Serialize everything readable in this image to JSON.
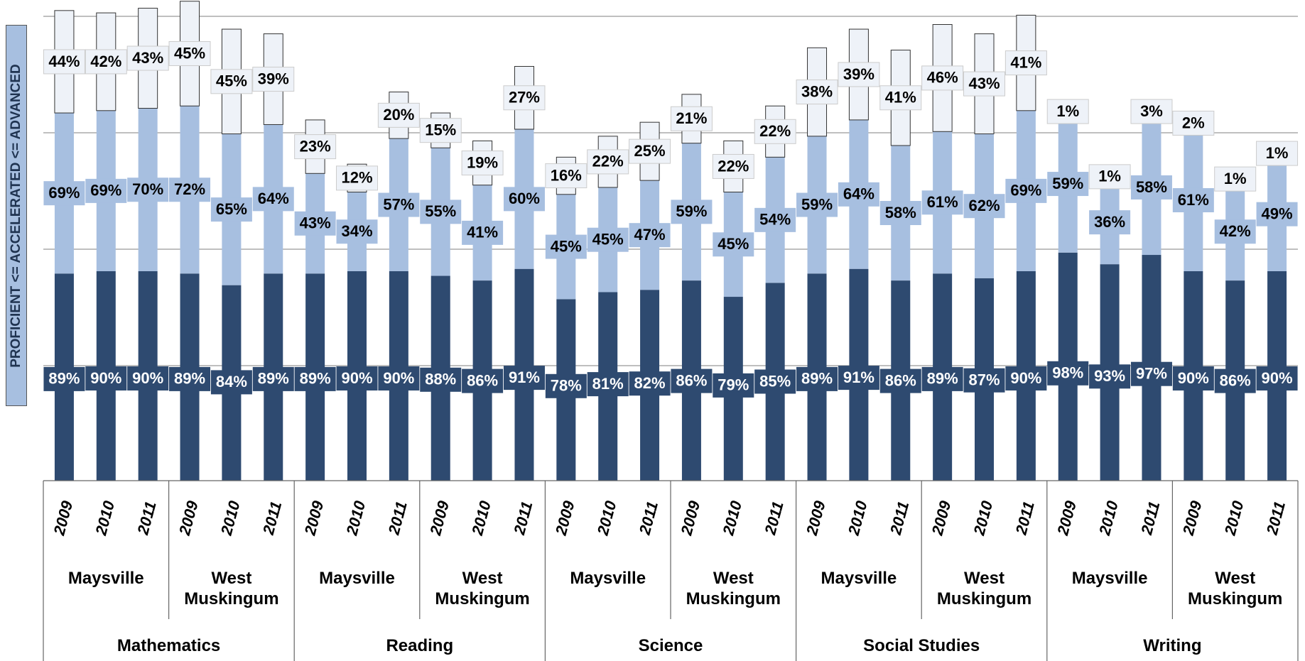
{
  "chart_data": {
    "type": "stacked_bar",
    "y_axis_label": "PROFICIENT <= ACCELERATED <= ADVANCED",
    "categories": [
      "2009",
      "2010",
      "2011",
      "2009",
      "2010",
      "2011",
      "2009",
      "2010",
      "2011",
      "2009",
      "2010",
      "2011",
      "2009",
      "2010",
      "2011",
      "2009",
      "2010",
      "2011",
      "2009",
      "2010",
      "2011",
      "2009",
      "2010",
      "2011",
      "2009",
      "2010",
      "2011",
      "2009",
      "2010",
      "2011"
    ],
    "groups": [
      "Maysville",
      "West Muskingum",
      "Maysville",
      "West Muskingum",
      "Maysville",
      "West Muskingum",
      "Maysville",
      "West Muskingum",
      "Maysville",
      "West Muskingum"
    ],
    "subjects": [
      "Mathematics",
      "Reading",
      "Science",
      "Social Studies",
      "Writing"
    ],
    "ylim": [
      0,
      205
    ],
    "series": [
      {
        "name": "Proficient",
        "color": "#2e4a70",
        "values": [
          89,
          90,
          90,
          89,
          84,
          89,
          89,
          90,
          90,
          88,
          86,
          91,
          78,
          81,
          82,
          86,
          79,
          85,
          89,
          91,
          86,
          89,
          87,
          90,
          98,
          93,
          97,
          90,
          86,
          90
        ],
        "value_labels": [
          "89%",
          "90%",
          "90%",
          "89%",
          "84%",
          "89%",
          "89%",
          "90%",
          "90%",
          "88%",
          "86%",
          "91%",
          "78%",
          "81%",
          "82%",
          "86%",
          "79%",
          "85%",
          "89%",
          "91%",
          "86%",
          "89%",
          "87%",
          "90%",
          "98%",
          "93%",
          "97%",
          "90%",
          "86%",
          "90%"
        ]
      },
      {
        "name": "Accelerated",
        "color": "#a7bfe0",
        "values": [
          69,
          69,
          70,
          72,
          65,
          64,
          43,
          34,
          57,
          55,
          41,
          60,
          45,
          45,
          47,
          59,
          45,
          54,
          59,
          64,
          58,
          61,
          62,
          69,
          59,
          36,
          58,
          61,
          42,
          49
        ],
        "value_labels": [
          "69%",
          "69%",
          "70%",
          "72%",
          "65%",
          "64%",
          "43%",
          "34%",
          "57%",
          "55%",
          "41%",
          "60%",
          "45%",
          "45%",
          "47%",
          "59%",
          "45%",
          "54%",
          "59%",
          "64%",
          "58%",
          "61%",
          "62%",
          "69%",
          "59%",
          "36%",
          "58%",
          "61%",
          "42%",
          "49%"
        ]
      },
      {
        "name": "Advanced",
        "color": "#eef2f8",
        "values": [
          44,
          42,
          43,
          45,
          45,
          39,
          23,
          12,
          20,
          15,
          19,
          27,
          16,
          22,
          25,
          21,
          22,
          22,
          38,
          39,
          41,
          46,
          43,
          41,
          1,
          1,
          3,
          2,
          1,
          1
        ],
        "value_labels": [
          "44%",
          "42%",
          "43%",
          "45%",
          "45%",
          "39%",
          "23%",
          "12%",
          "20%",
          "15%",
          "19%",
          "27%",
          "16%",
          "22%",
          "25%",
          "21%",
          "22%",
          "22%",
          "38%",
          "39%",
          "41%",
          "46%",
          "43%",
          "41%",
          "1%",
          "1%",
          "3%",
          "2%",
          "1%",
          "1%"
        ]
      }
    ]
  }
}
